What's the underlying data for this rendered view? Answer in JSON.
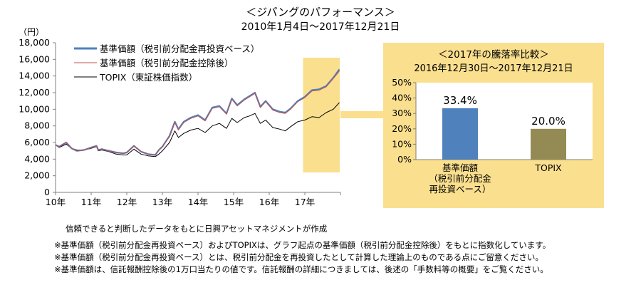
{
  "header": {
    "title": "＜ジパングのパフォーマンス＞",
    "period": "2010年1月4日～2017年12月21日"
  },
  "main_chart": {
    "unit": "（円）",
    "legend": [
      {
        "name": "基準価額（税引前分配金再投資ベース）",
        "color": "#4f81bd"
      },
      {
        "name": "基準価額（税引前分配金控除後）",
        "color": "#c0504d"
      },
      {
        "name": "TOPIX（東証株価指数）",
        "color": "#000000"
      }
    ]
  },
  "inset": {
    "title": "＜2017年の騰落率比較＞",
    "period": "2016年12月30日～2017年12月21日"
  },
  "source": "信頼できると判断したデータをもとに日興アセットマネジメントが作成",
  "notes": [
    "※基準価額（税引前分配金再投資ベース）およびTOPIXは、グラフ起点の基準価額（税引前分配金控除後）をもとに指数化しています。",
    "※基準価額（税引前分配金再投資ベース）とは、税引前分配金を再投資したとして計算した理論上のものである点にご留意ください。",
    "※基準価額は、信託報酬控除後の1万口当たりの値です。信託報酬の詳細につきましては、後述の「手数料等の概要」をご覧ください。"
  ],
  "colors": {
    "highlight": "#fadf8e",
    "reinvest": "#4f81bd",
    "after_dist": "#c0504d",
    "topix": "#000000",
    "bar_fund": "#4f81bd",
    "bar_topix": "#948a54",
    "axis": "#808080"
  },
  "chart_data": [
    {
      "type": "line",
      "ylim": [
        0,
        18000
      ],
      "yticks": [
        "0",
        "2,000",
        "4,000",
        "6,000",
        "8,000",
        "10,000",
        "12,000",
        "14,000",
        "16,000",
        "18,000"
      ],
      "xlim": [
        2010.0,
        2018.0
      ],
      "xticks": [
        "10年",
        "11年",
        "12年",
        "13年",
        "14年",
        "15年",
        "16年",
        "17年"
      ],
      "highlight_range": [
        2016.95,
        2017.98
      ],
      "series": [
        {
          "name": "基準価額（税引前分配金再投資ベース）",
          "x": [
            2010.0,
            2010.1,
            2010.3,
            2010.45,
            2010.6,
            2010.8,
            2011.0,
            2011.15,
            2011.2,
            2011.3,
            2011.5,
            2011.7,
            2011.9,
            2012.0,
            2012.2,
            2012.4,
            2012.6,
            2012.8,
            2012.9,
            2013.0,
            2013.2,
            2013.35,
            2013.45,
            2013.6,
            2013.8,
            2014.0,
            2014.2,
            2014.4,
            2014.6,
            2014.8,
            2014.95,
            2015.1,
            2015.3,
            2015.45,
            2015.6,
            2015.75,
            2015.9,
            2016.1,
            2016.3,
            2016.45,
            2016.6,
            2016.8,
            2017.0,
            2017.2,
            2017.4,
            2017.6,
            2017.8,
            2017.97
          ],
          "y": [
            5700,
            5500,
            6000,
            5300,
            5000,
            5100,
            5400,
            5600,
            5100,
            5200,
            5000,
            4800,
            4700,
            4800,
            5600,
            4900,
            4600,
            4500,
            5100,
            5500,
            6800,
            8500,
            7600,
            8500,
            9000,
            9300,
            8700,
            10200,
            10400,
            9500,
            11300,
            10500,
            11200,
            11600,
            12000,
            10300,
            11000,
            10000,
            9700,
            9600,
            10100,
            11000,
            11500,
            12300,
            12400,
            12800,
            13800,
            14800
          ]
        },
        {
          "name": "基準価額（税引前分配金控除後）",
          "x": [
            2010.0,
            2010.1,
            2010.3,
            2010.45,
            2010.6,
            2010.8,
            2011.0,
            2011.15,
            2011.2,
            2011.3,
            2011.5,
            2011.7,
            2011.9,
            2012.0,
            2012.2,
            2012.4,
            2012.6,
            2012.8,
            2012.9,
            2013.0,
            2013.2,
            2013.35,
            2013.45,
            2013.6,
            2013.8,
            2014.0,
            2014.2,
            2014.4,
            2014.6,
            2014.8,
            2014.95,
            2015.1,
            2015.3,
            2015.45,
            2015.6,
            2015.75,
            2015.9,
            2016.1,
            2016.3,
            2016.45,
            2016.6,
            2016.8,
            2017.0,
            2017.2,
            2017.4,
            2017.6,
            2017.8,
            2017.97
          ],
          "y": [
            5700,
            5500,
            6000,
            5300,
            5000,
            5100,
            5400,
            5600,
            5100,
            5200,
            5000,
            4800,
            4700,
            4800,
            5600,
            4900,
            4600,
            4500,
            5100,
            5500,
            6700,
            8400,
            7500,
            8400,
            8900,
            9200,
            8600,
            10100,
            10300,
            9400,
            11200,
            10400,
            11100,
            11500,
            11900,
            10200,
            10900,
            9900,
            9600,
            9500,
            10000,
            10900,
            11400,
            12200,
            12300,
            12700,
            13700,
            14600
          ]
        },
        {
          "name": "TOPIX（東証株価指数）",
          "x": [
            2010.0,
            2010.1,
            2010.3,
            2010.45,
            2010.6,
            2010.8,
            2011.0,
            2011.15,
            2011.2,
            2011.3,
            2011.5,
            2011.7,
            2011.9,
            2012.0,
            2012.2,
            2012.4,
            2012.6,
            2012.8,
            2012.9,
            2013.0,
            2013.2,
            2013.35,
            2013.45,
            2013.6,
            2013.8,
            2014.0,
            2014.2,
            2014.4,
            2014.6,
            2014.8,
            2014.95,
            2015.1,
            2015.3,
            2015.45,
            2015.6,
            2015.75,
            2015.9,
            2016.1,
            2016.3,
            2016.45,
            2016.6,
            2016.8,
            2017.0,
            2017.2,
            2017.4,
            2017.6,
            2017.8,
            2017.97
          ],
          "y": [
            5700,
            5400,
            5800,
            5300,
            5100,
            5100,
            5300,
            5500,
            5000,
            5100,
            4900,
            4600,
            4500,
            4500,
            5200,
            4600,
            4400,
            4300,
            4600,
            5000,
            6000,
            7400,
            6600,
            7100,
            7500,
            7700,
            7200,
            8000,
            8300,
            7700,
            8900,
            8400,
            9000,
            9200,
            9500,
            8300,
            8700,
            7800,
            7600,
            7400,
            7900,
            8500,
            8700,
            9100,
            9000,
            9600,
            10000,
            10800
          ]
        }
      ]
    },
    {
      "type": "bar",
      "categories": [
        "基準価額\n（税引前分配金\n再投資ベース）",
        "TOPIX"
      ],
      "values": [
        33.4,
        20.0
      ],
      "value_labels": [
        "33.4%",
        "20.0%"
      ],
      "ylim": [
        0,
        50
      ],
      "yticks": [
        "0%",
        "10%",
        "20%",
        "30%",
        "40%",
        "50%"
      ]
    }
  ]
}
